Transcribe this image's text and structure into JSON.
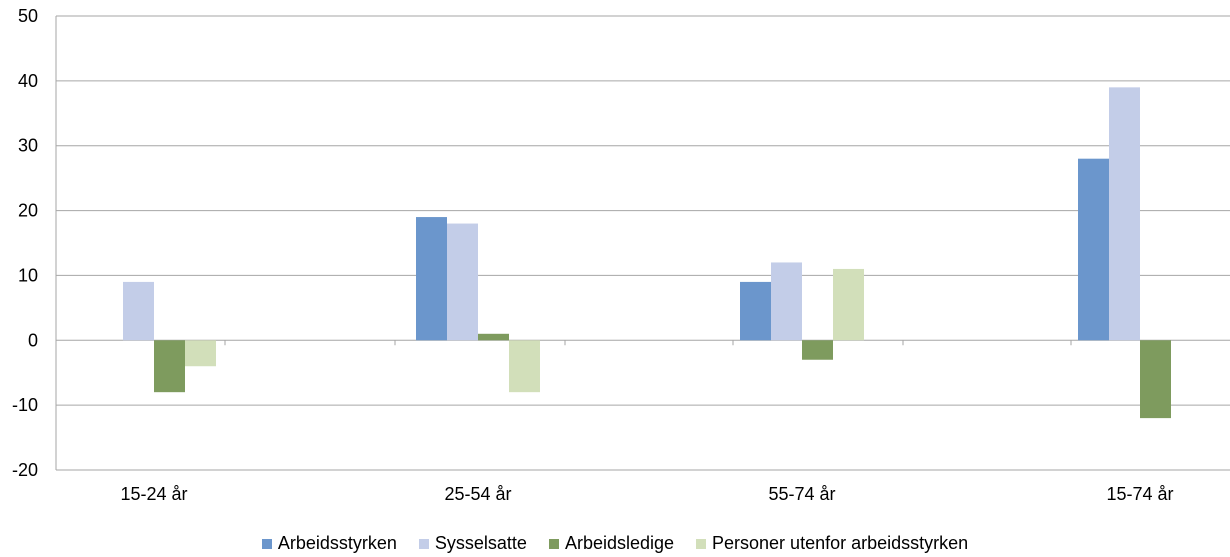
{
  "chart_data": {
    "type": "bar",
    "categories": [
      "15-24 år",
      "25-54 år",
      "55-74 år",
      "15-74 år"
    ],
    "series": [
      {
        "name": "Arbeidsstyrken",
        "color": "#6b96cc",
        "values": [
          0,
          19,
          9,
          28
        ]
      },
      {
        "name": "Sysselsatte",
        "color": "#c3cde8",
        "values": [
          9,
          18,
          12,
          39
        ]
      },
      {
        "name": "Arbeidsledige",
        "color": "#7e9b5e",
        "values": [
          -8,
          1,
          -3,
          -12
        ]
      },
      {
        "name": "Personer utenfor arbeidsstyrken",
        "color": "#d2dfba",
        "values": [
          -4,
          -8,
          11,
          0
        ]
      }
    ],
    "ylim": [
      -20,
      50
    ],
    "yticks": [
      -20,
      -10,
      0,
      10,
      20,
      30,
      40,
      50
    ],
    "grid": true,
    "legend_position": "bottom"
  }
}
